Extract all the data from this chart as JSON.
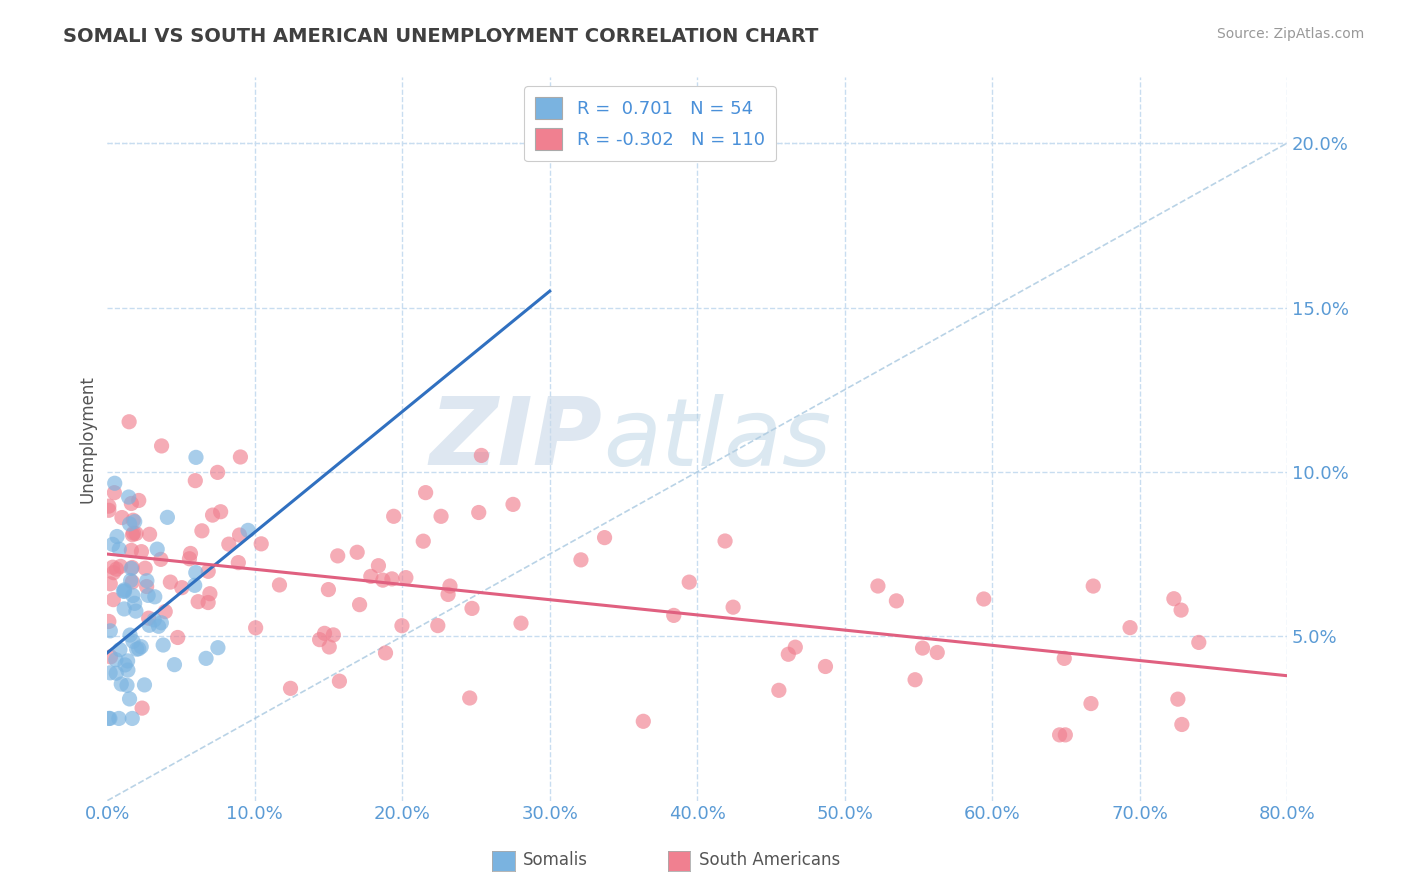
{
  "title": "SOMALI VS SOUTH AMERICAN UNEMPLOYMENT CORRELATION CHART",
  "source": "Source: ZipAtlas.com",
  "ylabel": "Unemployment",
  "xlim": [
    0.0,
    0.8
  ],
  "ylim": [
    0.0,
    0.22
  ],
  "yticks": [
    0.05,
    0.1,
    0.15,
    0.2
  ],
  "xticks": [
    0.0,
    0.1,
    0.2,
    0.3,
    0.4,
    0.5,
    0.6,
    0.7,
    0.8
  ],
  "somali_R": 0.701,
  "somali_N": 54,
  "south_american_R": -0.302,
  "south_american_N": 110,
  "blue_color": "#7ab3e0",
  "pink_color": "#f08090",
  "legend_label_somali": "Somalis",
  "legend_label_sa": "South Americans",
  "watermark_zip": "ZIP",
  "watermark_atlas": "atlas",
  "title_color": "#404040",
  "axis_label_color": "#5b9bd5",
  "grid_color": "#c8ddf0",
  "somali_line_color": "#3070c0",
  "sa_line_color": "#e06080",
  "diag_line_color": "#a8c8e0",
  "somali_line_x0": 0.0,
  "somali_line_y0": 0.045,
  "somali_line_x1": 0.3,
  "somali_line_y1": 0.155,
  "sa_line_x0": 0.0,
  "sa_line_y0": 0.075,
  "sa_line_x1": 0.8,
  "sa_line_y1": 0.038
}
